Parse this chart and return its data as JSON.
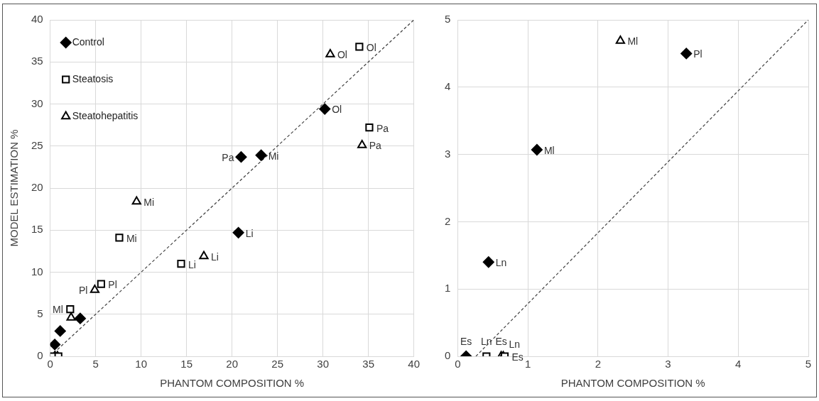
{
  "chart_data": [
    {
      "type": "scatter",
      "xlabel": "PHANTOM COMPOSITION %",
      "ylabel": "MODEL ESTIMATION %",
      "xlim": [
        0,
        40
      ],
      "xticks": [
        0,
        5,
        10,
        15,
        20,
        25,
        30,
        35,
        40
      ],
      "ylim": [
        0,
        40
      ],
      "yticks": [
        0,
        5,
        10,
        15,
        20,
        25,
        30,
        35,
        40
      ],
      "grid": true,
      "legend": "top left",
      "series": [
        {
          "name": "Control",
          "color": "#000000",
          "marker": "diamond",
          "x": [
            30.2,
            21.0,
            23.2,
            20.7,
            3.3,
            1.1,
            0.5
          ],
          "values": [
            29.4,
            23.7,
            23.9,
            14.7,
            4.5,
            3.0,
            1.4
          ],
          "value_labels": [
            "Ol",
            "Pa",
            "Mi",
            "Li",
            null,
            null,
            null
          ]
        },
        {
          "name": "Steatosis",
          "color": "#000000",
          "marker": "square",
          "x": [
            34.0,
            35.1,
            7.6,
            14.4,
            5.6,
            2.2,
            0.3,
            0.9
          ],
          "values": [
            36.8,
            27.2,
            14.1,
            11.0,
            8.6,
            5.6,
            0,
            0
          ],
          "value_labels": [
            "Ol",
            "Pa",
            "Mi",
            "Li",
            "Pl",
            "Ml",
            null,
            null
          ]
        },
        {
          "name": "Steatohepatitis",
          "color": "#000000",
          "marker": "triangle",
          "x": [
            30.8,
            34.3,
            9.5,
            16.9,
            4.9,
            2.3,
            0.5,
            0.8
          ],
          "values": [
            35.9,
            25.1,
            18.4,
            11.9,
            7.9,
            4.6,
            0,
            0
          ],
          "value_labels": [
            "Ol",
            "Pa",
            "Mi",
            "Li",
            "Pl",
            null,
            null,
            null
          ]
        },
        {
          "type": "line",
          "color": "#404040",
          "line_style": "dashed",
          "marker": "none",
          "x": [
            0,
            40
          ],
          "values": [
            0,
            40
          ]
        }
      ]
    },
    {
      "type": "scatter",
      "xlabel": "PHANTOM COMPOSITION %",
      "xlim": [
        0,
        5
      ],
      "xticks": [
        0,
        1,
        2,
        3,
        4,
        5
      ],
      "ylim": [
        0,
        5
      ],
      "yticks": [
        0,
        1,
        2,
        3,
        4,
        5
      ],
      "grid": true,
      "series": [
        {
          "color": "#000000",
          "marker": "diamond",
          "x": [
            3.26,
            1.13,
            0.44,
            0.12
          ],
          "values": [
            4.5,
            3.07,
            1.4,
            0
          ],
          "value_labels": [
            "Pl",
            "Ml",
            "Ln",
            "Es"
          ]
        },
        {
          "color": "#000000",
          "marker": "square",
          "x": [
            0.41,
            0.67
          ],
          "values": [
            0,
            0
          ],
          "value_labels": [
            "Ln",
            "Es"
          ]
        },
        {
          "color": "#000000",
          "marker": "triangle",
          "x": [
            2.32,
            0.62,
            0.65
          ],
          "values": [
            4.69,
            0,
            0
          ],
          "value_labels": [
            "Ml",
            "Es",
            "Ln"
          ]
        },
        {
          "type": "line",
          "color": "#404040",
          "line_style": "dashed",
          "marker": "none",
          "x": [
            0.26,
            5
          ],
          "values": [
            0,
            5
          ]
        }
      ]
    }
  ]
}
